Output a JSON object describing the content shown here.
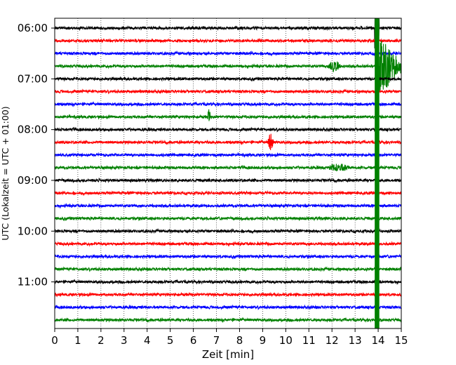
{
  "chart_data": {
    "type": "line",
    "title": "",
    "xlabel": "Zeit  [min]",
    "ylabel": "UTC (Lokalzeit = UTC + 01:00)",
    "xlim": [
      0,
      15
    ],
    "x_ticks": [
      "0",
      "1",
      "2",
      "3",
      "4",
      "5",
      "6",
      "7",
      "8",
      "9",
      "10",
      "11",
      "12",
      "13",
      "14",
      "15"
    ],
    "y_tick_labels": [
      "06:00",
      "07:00",
      "08:00",
      "09:00",
      "10:00",
      "11:00"
    ],
    "grid": "vertical dotted at each minute",
    "line_interval_minutes": 15,
    "trace_colors": [
      "#000000",
      "#ff0000",
      "#0000ff",
      "#008000"
    ],
    "trace_start_times": [
      "06:00",
      "06:15",
      "06:30",
      "06:45",
      "07:00",
      "07:15",
      "07:30",
      "07:45",
      "08:00",
      "08:15",
      "08:30",
      "08:45",
      "09:00",
      "09:15",
      "09:30",
      "09:45",
      "10:00",
      "10:15",
      "10:30",
      "10:45",
      "11:00",
      "11:15",
      "11:30",
      "11:45"
    ],
    "noise_amplitude": 0.1,
    "events": [
      {
        "trace_start": "06:00",
        "minute_start": 13.85,
        "minute_end": 14.05,
        "amplitude": 5,
        "note": "large event, clipped"
      },
      {
        "trace_start": "06:45",
        "minute_start": 14.0,
        "minute_end": 15.0,
        "amplitude": 2.5,
        "note": "coda"
      },
      {
        "trace_start": "08:15",
        "minute_start": 9.2,
        "minute_end": 9.5,
        "amplitude": 0.7
      },
      {
        "trace_start": "07:45",
        "minute_start": 6.6,
        "minute_end": 6.75,
        "amplitude": 0.6
      },
      {
        "trace_start": "08:45",
        "minute_start": 11.7,
        "minute_end": 12.9,
        "amplitude": 0.35
      },
      {
        "trace_start": "06:45",
        "minute_start": 11.8,
        "minute_end": 12.4,
        "amplitude": 0.5
      }
    ]
  }
}
